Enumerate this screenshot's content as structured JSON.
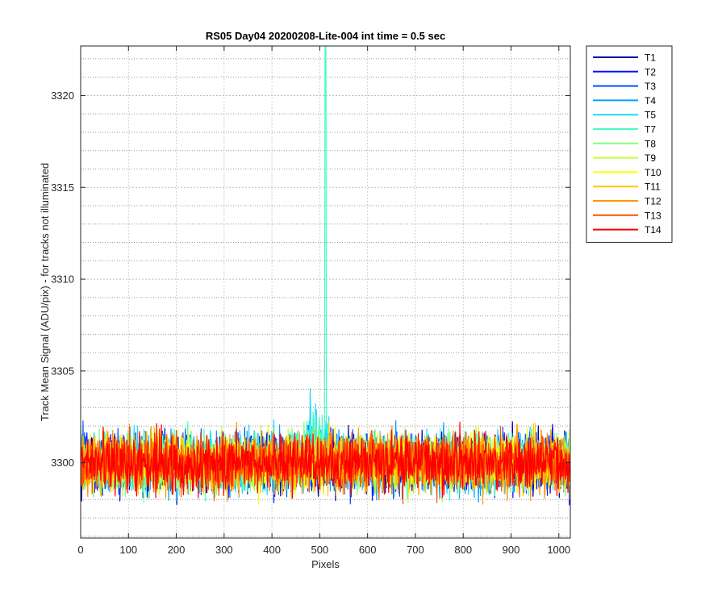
{
  "chart_data": {
    "type": "line",
    "title": "RS05 Day04 20200208-Lite-004 int time = 0.5 sec",
    "xlabel": "Pixels",
    "ylabel": "Track Mean Signal (ADU/pix) - for tracks not illuminated",
    "xlim": [
      0,
      1024
    ],
    "ylim": [
      3295.9,
      3322.7
    ],
    "xticks": [
      0,
      100,
      200,
      300,
      400,
      500,
      600,
      700,
      800,
      900,
      1000
    ],
    "yticks": [
      3300,
      3305,
      3310,
      3315,
      3320
    ],
    "ymajor_step": 5,
    "yminor_step": 1,
    "grid": true,
    "legend_position": "outside-top-right",
    "baseline_mean": 3300,
    "noise_amplitude": 1.2,
    "series": [
      {
        "name": "T1",
        "color": "#0000aa"
      },
      {
        "name": "T2",
        "color": "#0011ff"
      },
      {
        "name": "T3",
        "color": "#0055ff"
      },
      {
        "name": "T4",
        "color": "#00a0ff"
      },
      {
        "name": "T5",
        "color": "#20d8ff"
      },
      {
        "name": "T7",
        "color": "#40ffc0"
      },
      {
        "name": "T8",
        "color": "#80ff80"
      },
      {
        "name": "T9",
        "color": "#c0ff40"
      },
      {
        "name": "T10",
        "color": "#ffff00"
      },
      {
        "name": "T11",
        "color": "#ffc800"
      },
      {
        "name": "T12",
        "color": "#ff9600"
      },
      {
        "name": "T13",
        "color": "#ff5000"
      },
      {
        "name": "T14",
        "color": "#ff0000"
      }
    ],
    "annotations": [
      {
        "series": "T7",
        "x": 512,
        "y": 3322.7,
        "note": "spike exceeding axis top"
      },
      {
        "series": "T5",
        "x": 508,
        "y": 3304.5,
        "note": "raised region 470-520"
      }
    ]
  }
}
